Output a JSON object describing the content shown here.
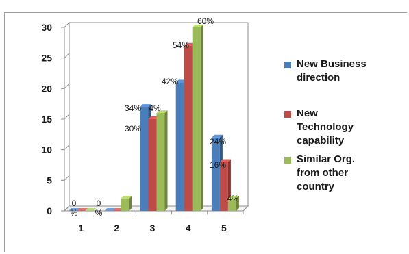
{
  "chart_data": {
    "type": "bar",
    "categories": [
      "1",
      "2",
      "3",
      "4",
      "5"
    ],
    "series": [
      {
        "name": "New Business direction",
        "values": [
          0,
          0,
          17,
          21,
          12
        ],
        "labels": [
          "0\n%",
          "0\n%",
          "34%",
          "42%",
          "24%"
        ],
        "color": "#4a7ebb"
      },
      {
        "name": "New Technology capability",
        "values": [
          0,
          0,
          15,
          27,
          8
        ],
        "labels": [
          "",
          "",
          "30%",
          "54%",
          "16%"
        ],
        "color": "#be4b48"
      },
      {
        "name": "Similar Org. from other country",
        "values": [
          0,
          2,
          16,
          30,
          2
        ],
        "labels": [
          "",
          "4%",
          "32%",
          "60%",
          "4%"
        ],
        "color": "#9bbb59"
      }
    ],
    "legend": {
      "position": "right",
      "entries": [
        [
          "New Business",
          "direction"
        ],
        [
          "New",
          "Technology",
          "capability"
        ],
        [
          "Similar Org.",
          "from other",
          "country"
        ]
      ]
    },
    "yticks": [
      "0",
      "5",
      "10",
      "15",
      "20",
      "25",
      "30"
    ],
    "ylim": [
      0,
      30
    ],
    "grid": false,
    "title": "",
    "xlabel": "",
    "ylabel": ""
  }
}
